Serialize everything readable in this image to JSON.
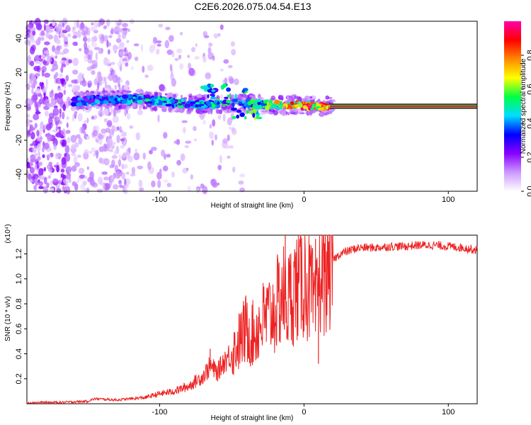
{
  "title": "C2E6.2026.075.04.54.E13",
  "chart_data": [
    {
      "type": "heatmap",
      "title": "C2E6.2026.075.04.54.E13",
      "xlabel": "Height of straight line (km)",
      "ylabel": "Frequency (Hz)",
      "xlim": [
        -192,
        120
      ],
      "ylim": [
        -50,
        50
      ],
      "xticks": [
        -100,
        0,
        100
      ],
      "yticks": [
        -40,
        -20,
        0,
        20,
        40
      ],
      "colorbar": {
        "label": "Normalized spectral amplitude",
        "range": [
          0,
          1
        ],
        "ticks": [
          0.0,
          0.2,
          0.4,
          0.6,
          0.8
        ],
        "colormap": [
          "#ffffff",
          "#cc99ff",
          "#8800ff",
          "#0000ff",
          "#00ddff",
          "#00ff44",
          "#ffff00",
          "#ff8800",
          "#ff0000",
          "#ff00aa"
        ]
      },
      "ridge": {
        "description_points": [
          {
            "x": -160,
            "f": 3,
            "amp": 0.4
          },
          {
            "x": -130,
            "f": 4,
            "amp": 0.45
          },
          {
            "x": -110,
            "f": 4,
            "amp": 0.5
          },
          {
            "x": -90,
            "f": 2,
            "amp": 0.5
          },
          {
            "x": -70,
            "f": 1,
            "amp": 0.5
          },
          {
            "x": -50,
            "f": 2,
            "amp": 0.55
          },
          {
            "x": -30,
            "f": 1,
            "amp": 0.6
          },
          {
            "x": -10,
            "f": 0.5,
            "amp": 0.8
          },
          {
            "x": 0,
            "f": 0.5,
            "amp": 0.9
          },
          {
            "x": 20,
            "f": 0,
            "amp": 1.0
          },
          {
            "x": 120,
            "f": 0,
            "amp": 1.0
          }
        ]
      }
    },
    {
      "type": "line",
      "xlabel": "Height of straight line (km)",
      "ylabel": "SNR (10 * v/v)",
      "y_multiplier_label": "(x10⁴)",
      "xlim": [
        -192,
        120
      ],
      "ylim": [
        0,
        1.35
      ],
      "xticks": [
        -100,
        0,
        100
      ],
      "yticks": [
        0.2,
        0.4,
        0.6,
        0.8,
        1.0,
        1.2
      ],
      "series": [
        {
          "name": "SNR",
          "color": "#ee2222",
          "x": [
            -192,
            -170,
            -150,
            -145,
            -130,
            -110,
            -100,
            -90,
            -80,
            -75,
            -70,
            -65,
            -60,
            -55,
            -50,
            -45,
            -40,
            -35,
            -30,
            -25,
            -20,
            -15,
            -12,
            -10,
            -8,
            -5,
            0,
            5,
            8,
            10,
            12,
            15,
            20,
            25,
            30,
            35,
            40,
            50,
            60,
            70,
            80,
            90,
            100,
            110,
            120
          ],
          "values": [
            0.01,
            0.01,
            0.02,
            0.04,
            0.03,
            0.05,
            0.08,
            0.1,
            0.14,
            0.18,
            0.22,
            0.3,
            0.25,
            0.35,
            0.4,
            0.5,
            0.6,
            0.55,
            0.65,
            0.7,
            0.75,
            0.9,
            0.8,
            0.85,
            0.9,
            0.95,
            1.0,
            0.9,
            0.7,
            1.0,
            1.05,
            1.1,
            1.15,
            1.2,
            1.22,
            1.24,
            1.25,
            1.25,
            1.26,
            1.26,
            1.27,
            1.27,
            1.26,
            1.25,
            1.23
          ]
        }
      ],
      "spikes": [
        {
          "x": -65,
          "value": 0.44
        },
        {
          "x": -13,
          "value": 1.35
        },
        {
          "x": -18,
          "value": 1.12
        },
        {
          "x": 8,
          "value": 1.32
        },
        {
          "x": 10,
          "value": 0.32
        }
      ]
    }
  ]
}
